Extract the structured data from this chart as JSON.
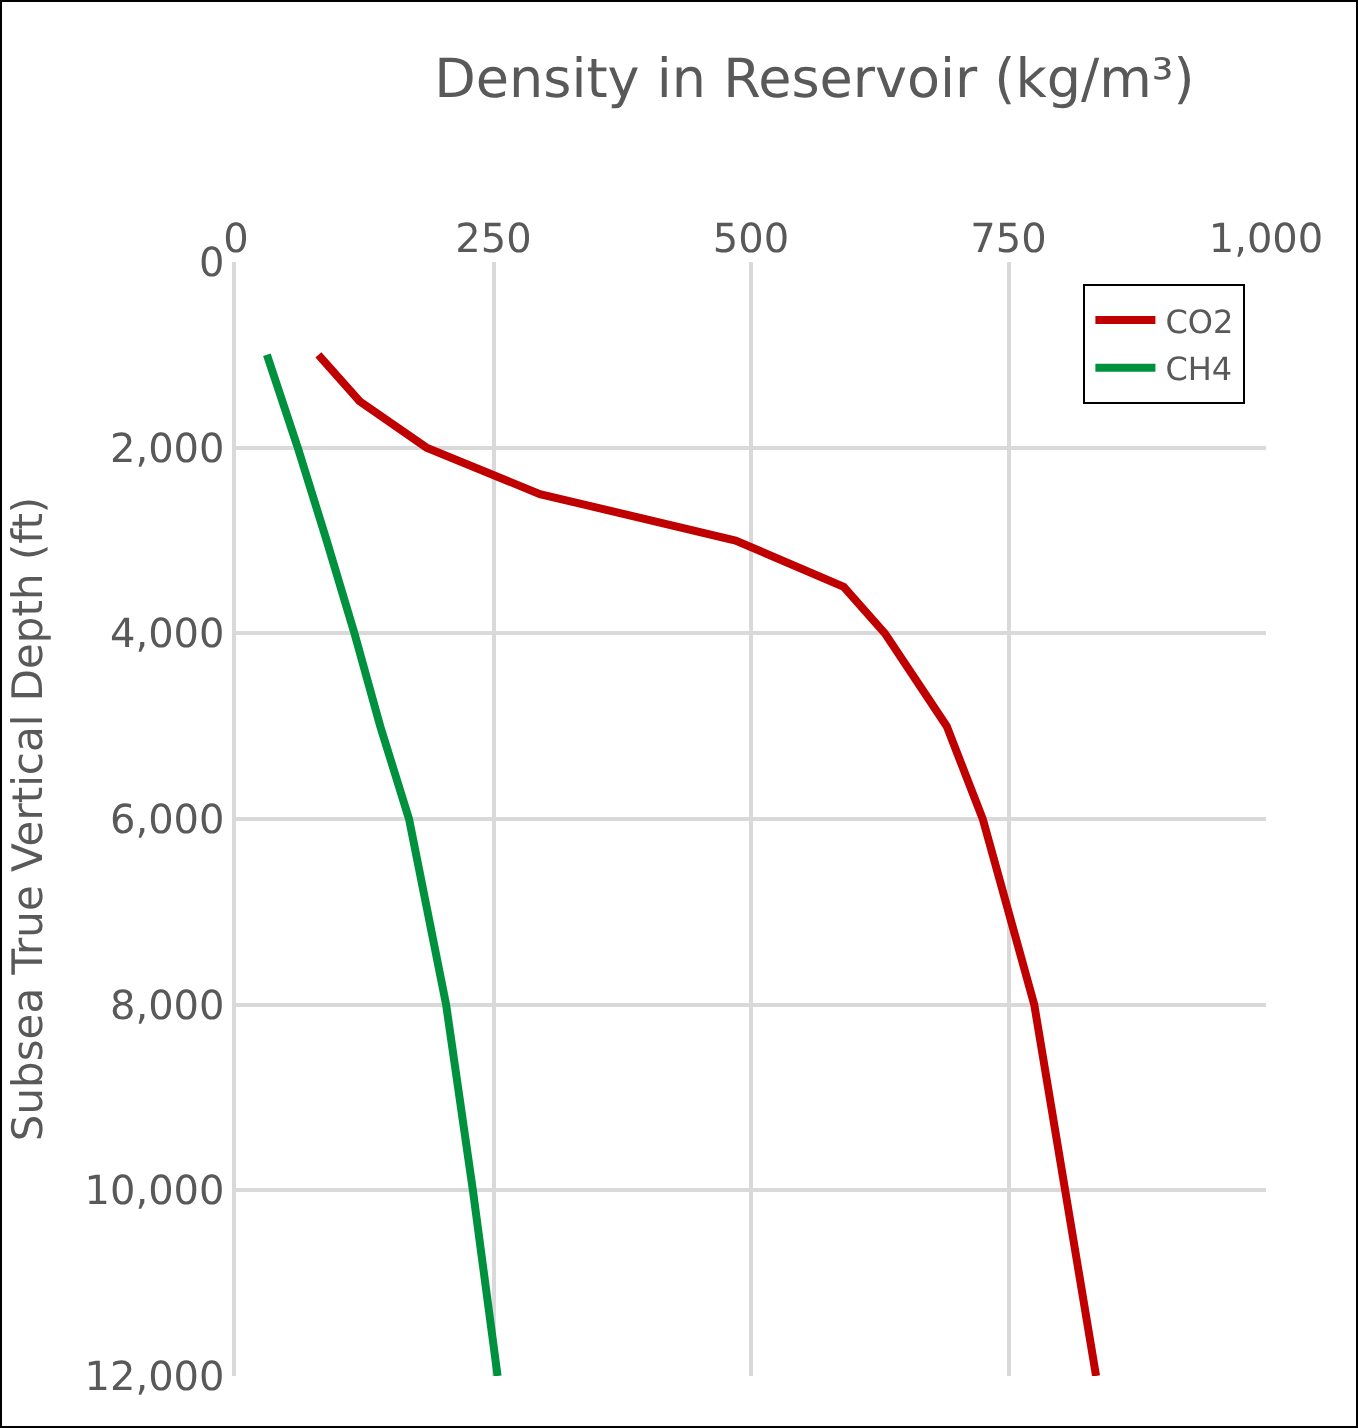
{
  "chart_data": {
    "type": "line",
    "title": "Density in Reservoir (kg/m³)",
    "ylabel": "Subsea True Vertical Depth (ft)",
    "xlim": [
      0,
      1000
    ],
    "xticks": [
      0,
      250,
      500,
      750,
      {
        "value": 1000,
        "label": "1,000"
      }
    ],
    "ylim": [
      12000,
      0
    ],
    "yticks": [
      0,
      {
        "value": 2000,
        "label": "2,000"
      },
      {
        "value": 4000,
        "label": "4,000"
      },
      {
        "value": 6000,
        "label": "6,000"
      },
      {
        "value": 8000,
        "label": "8,000"
      },
      {
        "value": 10000,
        "label": "10,000"
      },
      {
        "value": 12000,
        "label": "12,000"
      }
    ],
    "grid": true,
    "legend": "top right",
    "marker": "none",
    "line_style": "solid",
    "series": [
      {
        "name": "CO2",
        "color": "#c00000",
        "x": [
          80,
          120,
          185,
          295,
          485,
          590,
          630,
          660,
          690,
          725,
          775,
          805,
          835
        ],
        "values": [
          1000,
          1500,
          2000,
          2500,
          3000,
          3500,
          4000,
          4500,
          5000,
          6000,
          8000,
          10000,
          12000
        ]
      },
      {
        "name": "CH4",
        "color": "#00913f",
        "x": [
          30,
          60,
          88,
          115,
          140,
          168,
          204,
          230,
          254
        ],
        "values": [
          1000,
          2000,
          3000,
          4000,
          5000,
          6000,
          8000,
          10000,
          12000
        ]
      }
    ]
  }
}
